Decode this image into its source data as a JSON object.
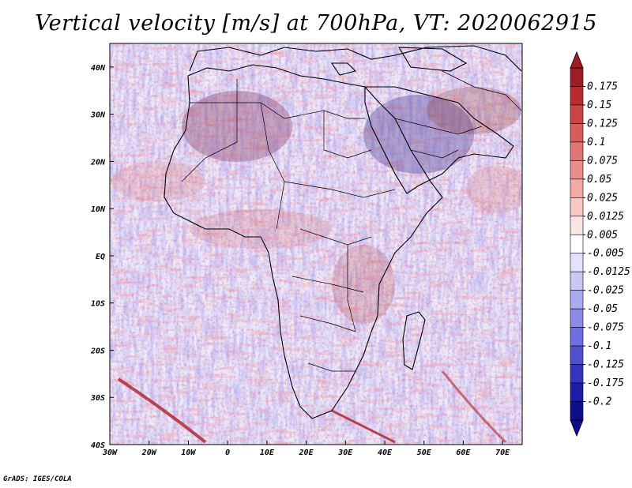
{
  "title": "Vertical velocity [m/s] at 700hPa, VT: 2020062915",
  "credit": "GrADS: IGES/COLA",
  "map": {
    "lon_range": [
      -30,
      75
    ],
    "lat_range": [
      -40,
      45
    ],
    "lon_ticks": [
      {
        "value": -30,
        "label": "30W"
      },
      {
        "value": -20,
        "label": "20W"
      },
      {
        "value": -10,
        "label": "10W"
      },
      {
        "value": 0,
        "label": "0"
      },
      {
        "value": 10,
        "label": "10E"
      },
      {
        "value": 20,
        "label": "20E"
      },
      {
        "value": 30,
        "label": "30E"
      },
      {
        "value": 40,
        "label": "40E"
      },
      {
        "value": 50,
        "label": "50E"
      },
      {
        "value": 60,
        "label": "60E"
      },
      {
        "value": 70,
        "label": "70E"
      }
    ],
    "lat_ticks": [
      {
        "value": 40,
        "label": "40N"
      },
      {
        "value": 30,
        "label": "30N"
      },
      {
        "value": 20,
        "label": "20N"
      },
      {
        "value": 10,
        "label": "10N"
      },
      {
        "value": 0,
        "label": "EQ"
      },
      {
        "value": -10,
        "label": "10S"
      },
      {
        "value": -20,
        "label": "20S"
      },
      {
        "value": -30,
        "label": "30S"
      },
      {
        "value": -40,
        "label": "40S"
      }
    ]
  },
  "colorbar": {
    "levels": [
      "0.175",
      "0.15",
      "0.125",
      "0.1",
      "0.075",
      "0.05",
      "0.025",
      "0.0125",
      "0.005",
      "-0.005",
      "-0.0125",
      "-0.025",
      "-0.05",
      "-0.075",
      "-0.1",
      "-0.125",
      "-0.175",
      "-0.2"
    ],
    "colors": [
      "#a01c24",
      "#b82c30",
      "#cc4444",
      "#d85c5c",
      "#e27474",
      "#ea8e8c",
      "#f2aaa6",
      "#f8c8c4",
      "#fbe4e2",
      "#ffffff",
      "#e2e2fa",
      "#c8c8f4",
      "#aaaaee",
      "#8c8ce6",
      "#6e6ede",
      "#5050d0",
      "#3434c0",
      "#1c1ca8",
      "#0e0e8c"
    ]
  }
}
